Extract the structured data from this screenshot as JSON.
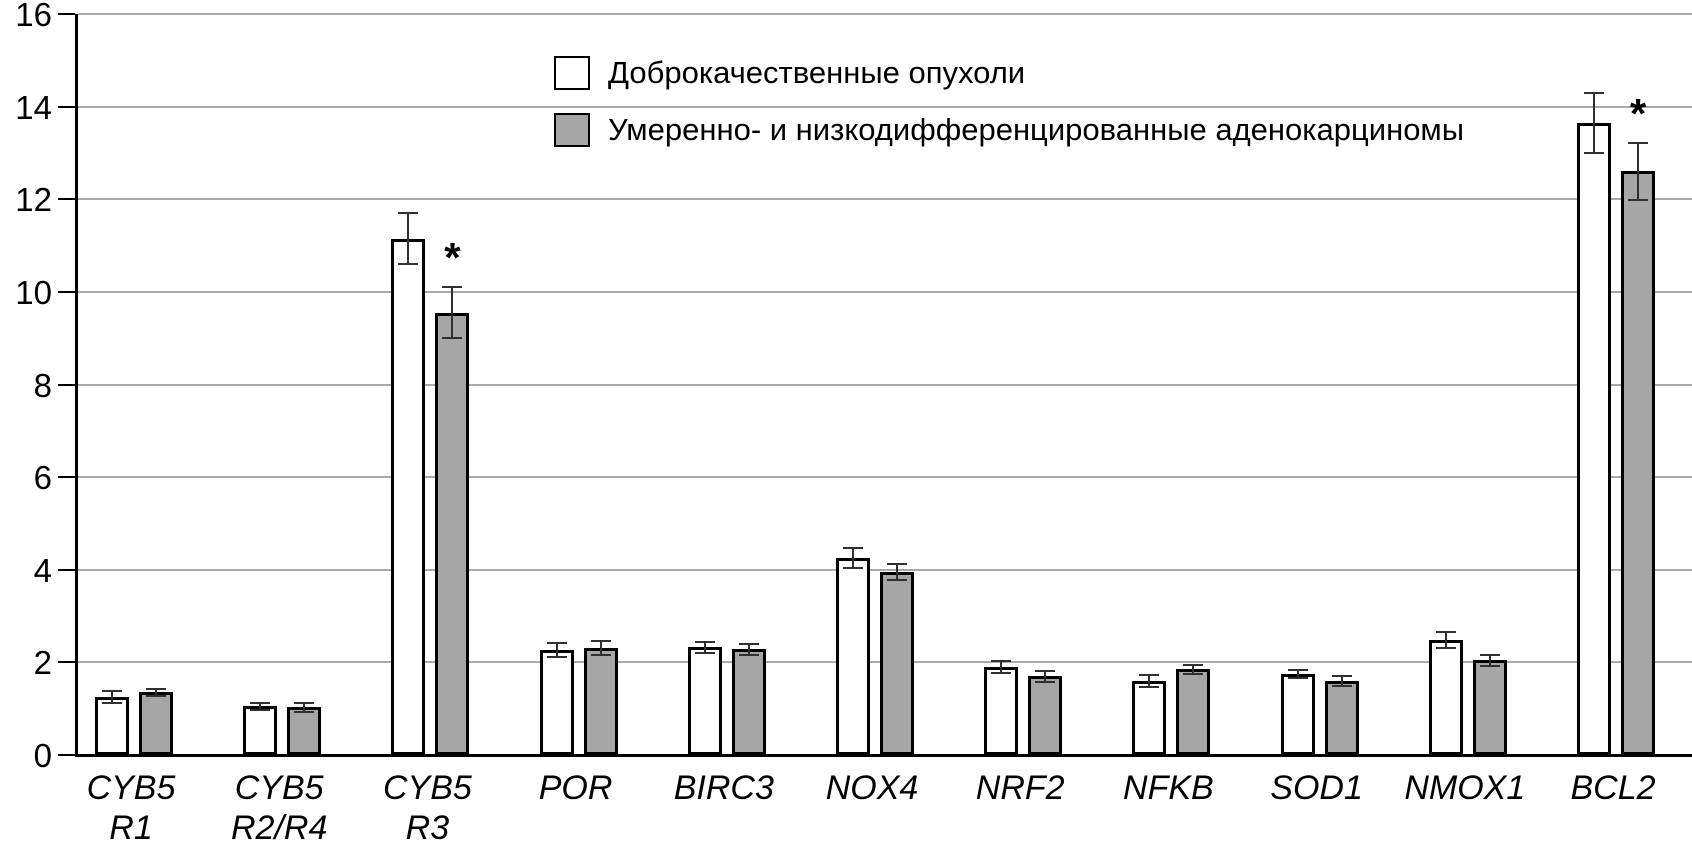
{
  "chart_data": {
    "type": "bar",
    "title": "",
    "xlabel": "",
    "ylabel": "",
    "ylim": [
      0,
      16
    ],
    "ytick_step": 2,
    "ytick_labels": [
      "0",
      "2",
      "4",
      "6",
      "8",
      "10",
      "12",
      "14",
      "16"
    ],
    "grid": true,
    "legend_position": "top-center",
    "categories": [
      [
        "CYB5",
        "R1"
      ],
      [
        "CYB5",
        "R2/R4"
      ],
      [
        "CYB5",
        "R3"
      ],
      [
        "POR"
      ],
      [
        "BIRC3"
      ],
      [
        "NOX4"
      ],
      [
        "NRF2"
      ],
      [
        "NFKB"
      ],
      [
        "SOD1"
      ],
      [
        "NMOX1"
      ],
      [
        "BCL2"
      ]
    ],
    "series": [
      {
        "name": "Доброкачественные опухоли",
        "color": "#ffffff",
        "values": [
          1.25,
          1.05,
          11.15,
          2.27,
          2.33,
          4.25,
          1.9,
          1.6,
          1.75,
          2.48,
          13.65
        ],
        "errors": [
          0.13,
          0.08,
          0.55,
          0.15,
          0.12,
          0.22,
          0.12,
          0.13,
          0.09,
          0.17,
          0.65
        ]
      },
      {
        "name": "Умеренно- и низкодифференцированные аденокарциномы",
        "color": "#a6a6a6",
        "values": [
          1.35,
          1.03,
          9.55,
          2.32,
          2.28,
          3.95,
          1.7,
          1.85,
          1.6,
          2.05,
          12.6
        ],
        "errors": [
          0.07,
          0.1,
          0.55,
          0.15,
          0.12,
          0.18,
          0.12,
          0.1,
          0.11,
          0.12,
          0.62
        ]
      }
    ],
    "significance": {
      "marker": "*",
      "series_index": 1,
      "category_indexes": [
        2,
        10
      ]
    },
    "colors": {
      "grid": "#a9a9a9",
      "axis": "#000000",
      "error_bar": "#303030"
    }
  }
}
